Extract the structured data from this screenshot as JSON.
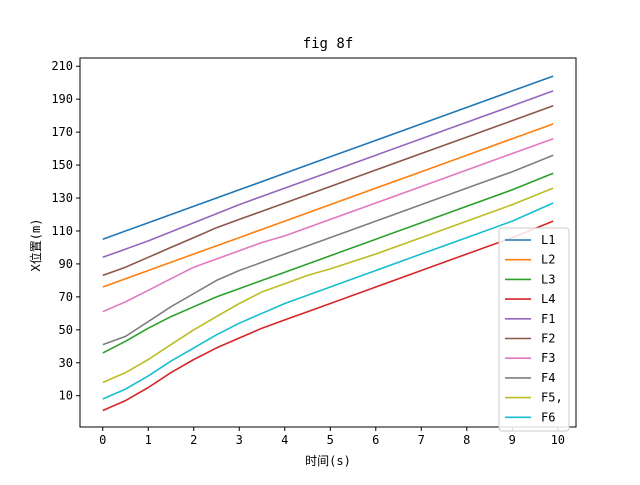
{
  "chart_data": {
    "type": "line",
    "title": "fig 8f",
    "xlabel": "时间(s)",
    "ylabel": "X位置(m)",
    "xlim": [
      -0.5,
      10.4
    ],
    "ylim": [
      -9,
      215
    ],
    "xticks": [
      0,
      1,
      2,
      3,
      4,
      5,
      6,
      7,
      8,
      9,
      10
    ],
    "yticks": [
      10,
      30,
      50,
      70,
      90,
      110,
      130,
      150,
      170,
      190,
      210
    ],
    "grid": false,
    "legend_position": "lower right",
    "series": [
      {
        "name": "L1",
        "color": "#1f77b4",
        "x": [
          0,
          1,
          2,
          3,
          4,
          5,
          6,
          7,
          8,
          9,
          9.9
        ],
        "y": [
          105,
          115,
          125,
          135,
          145,
          155,
          165,
          175,
          185,
          195,
          204
        ]
      },
      {
        "name": "L2",
        "color": "#ff7f0e",
        "x": [
          0,
          1,
          2,
          3,
          4,
          5,
          6,
          7,
          8,
          9,
          9.9
        ],
        "y": [
          76,
          86,
          96,
          106,
          116,
          126,
          136,
          146,
          156,
          166,
          175
        ]
      },
      {
        "name": "L3",
        "color": "#2ca02c",
        "x": [
          0,
          0.5,
          1,
          1.5,
          2,
          2.5,
          3,
          3.5,
          4,
          5,
          6,
          7,
          8,
          9,
          9.9
        ],
        "y": [
          36,
          43,
          51,
          58,
          64,
          70,
          75,
          80,
          85,
          95,
          105,
          115,
          125,
          135,
          145
        ]
      },
      {
        "name": "L4",
        "color": "#d62728",
        "x": [
          0,
          0.5,
          1,
          1.5,
          2,
          2.5,
          3,
          3.5,
          4,
          4.5,
          5,
          6,
          7,
          8,
          9,
          9.9
        ],
        "y": [
          1,
          7,
          15,
          24,
          32,
          39,
          45,
          51,
          56,
          61,
          66,
          76,
          86,
          96,
          106,
          116
        ]
      },
      {
        "name": "F1",
        "color": "#9467bd",
        "x": [
          0,
          1,
          2,
          3,
          4,
          5,
          6,
          7,
          8,
          9,
          9.9
        ],
        "y": [
          94,
          104,
          115,
          126,
          136,
          146,
          156,
          166,
          176,
          186,
          195
        ]
      },
      {
        "name": "F2",
        "color": "#8c564b",
        "x": [
          0,
          0.5,
          1,
          1.5,
          2,
          2.5,
          3,
          3.5,
          4,
          5,
          6,
          7,
          8,
          9,
          9.9
        ],
        "y": [
          83,
          88,
          94,
          100,
          106,
          112,
          117,
          122,
          127,
          137,
          147,
          157,
          167,
          177,
          186
        ]
      },
      {
        "name": "F3",
        "color": "#e377c2",
        "x": [
          0,
          0.5,
          1,
          1.5,
          2,
          2.5,
          3,
          3.5,
          4,
          5,
          6,
          7,
          8,
          9,
          9.9
        ],
        "y": [
          61,
          67,
          74,
          81,
          88,
          93,
          98,
          103,
          107,
          117,
          127,
          137,
          147,
          157,
          166
        ]
      },
      {
        "name": "F4",
        "color": "#7f7f7f",
        "x": [
          0,
          0.5,
          1,
          1.5,
          2,
          2.5,
          3,
          3.5,
          4,
          5,
          6,
          7,
          8,
          9,
          9.9
        ],
        "y": [
          41,
          46,
          55,
          64,
          72,
          80,
          86,
          91,
          96,
          106,
          116,
          126,
          136,
          146,
          156
        ]
      },
      {
        "name": "F5,",
        "color": "#bcbd22",
        "x": [
          0,
          0.5,
          1,
          1.5,
          2,
          2.5,
          3,
          3.5,
          4,
          4.5,
          5,
          6,
          7,
          8,
          9,
          9.9
        ],
        "y": [
          18,
          24,
          32,
          41,
          50,
          58,
          66,
          73,
          78,
          83,
          87,
          96,
          106,
          116,
          126,
          136
        ]
      },
      {
        "name": "F6",
        "color": "#17becf",
        "x": [
          0,
          0.5,
          1,
          1.5,
          2,
          2.5,
          3,
          3.5,
          4,
          4.5,
          5,
          6,
          7,
          8,
          9,
          9.9
        ],
        "y": [
          8,
          14,
          22,
          31,
          39,
          47,
          54,
          60,
          66,
          71,
          76,
          86,
          96,
          106,
          116,
          127
        ]
      }
    ]
  }
}
